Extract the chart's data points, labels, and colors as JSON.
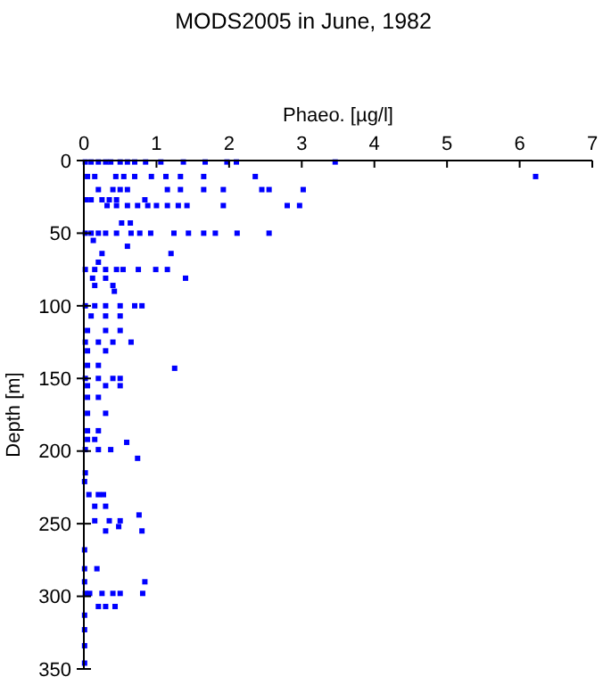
{
  "chart_data": {
    "type": "scatter",
    "title": "MODS2005 in June, 1982",
    "xlabel": "Phaeo. [µg/l]",
    "ylabel": "Depth [m]",
    "xlim": [
      0,
      7
    ],
    "xticks": [
      0,
      1,
      2,
      3,
      4,
      5,
      6,
      7
    ],
    "ylim": [
      350,
      0
    ],
    "yticks": [
      0,
      50,
      100,
      150,
      200,
      250,
      300,
      350
    ],
    "grid": false,
    "marker": "square",
    "series": [
      {
        "color": "#0000ff",
        "x": [
          0.02,
          0.1,
          0.2,
          0.3,
          0.37,
          0.5,
          0.6,
          0.7,
          0.85,
          1.06,
          1.37,
          1.67,
          1.97,
          2.1,
          3.46,
          0.05,
          0.15,
          0.44,
          0.55,
          0.7,
          0.93,
          1.13,
          1.33,
          1.65,
          2.36,
          6.22,
          0.2,
          0.4,
          0.5,
          0.6,
          1.15,
          1.33,
          1.65,
          1.92,
          2.45,
          2.55,
          3.02,
          0.03,
          0.1,
          0.25,
          0.35,
          0.45,
          0.84,
          0.32,
          0.45,
          0.6,
          0.74,
          0.88,
          1.0,
          1.15,
          1.3,
          1.42,
          1.92,
          2.8,
          2.97,
          0.52,
          0.64,
          0.02,
          0.1,
          0.2,
          0.3,
          0.45,
          0.65,
          0.77,
          0.92,
          1.24,
          1.44,
          1.65,
          1.81,
          2.11,
          2.55,
          0.13,
          0.6,
          0.25,
          1.2,
          0.2,
          0.02,
          0.15,
          0.3,
          0.45,
          0.54,
          0.75,
          0.99,
          1.15,
          0.12,
          0.3,
          1.4,
          0.15,
          0.4,
          0.42,
          0.02,
          0.15,
          0.3,
          0.5,
          0.7,
          0.8,
          0.1,
          0.3,
          0.5,
          0.05,
          0.3,
          0.5,
          0.02,
          0.2,
          0.4,
          0.65,
          0.05,
          0.3,
          0.05,
          0.2,
          1.25,
          0.02,
          0.2,
          0.4,
          0.5,
          0.05,
          0.3,
          0.5,
          0.05,
          0.2,
          0.05,
          0.3,
          0.05,
          0.2,
          0.05,
          0.15,
          0.59,
          0.02,
          0.2,
          0.37,
          0.74,
          0.02,
          0.01,
          0.07,
          0.2,
          0.27,
          0.15,
          0.3,
          0.76,
          0.15,
          0.35,
          0.5,
          0.48,
          0.3,
          0.8,
          0.01,
          0.01,
          0.18,
          0.01,
          0.84,
          0.02,
          0.08,
          0.25,
          0.4,
          0.5,
          0.81,
          0.2,
          0.3,
          0.43,
          0.01,
          0.01,
          0.01,
          0.01
        ],
        "values": [
          1,
          1,
          1,
          1,
          1,
          1,
          1,
          1,
          1,
          1,
          1,
          1,
          1,
          1,
          1,
          11,
          11,
          11,
          11,
          11,
          11,
          11,
          11,
          11,
          11,
          11,
          20,
          20,
          20,
          20,
          20,
          20,
          20,
          20,
          20,
          20,
          20,
          27,
          27,
          27,
          27,
          27,
          27,
          31,
          31,
          31,
          31,
          31,
          31,
          31,
          31,
          31,
          31,
          31,
          31,
          43,
          43,
          50,
          50,
          50,
          50,
          50,
          50,
          50,
          50,
          50,
          50,
          50,
          50,
          50,
          50,
          55,
          59,
          64,
          64,
          70,
          75,
          75,
          75,
          75,
          75,
          75,
          75,
          75,
          81,
          81,
          81,
          86,
          86,
          90,
          100,
          100,
          100,
          100,
          100,
          100,
          107,
          107,
          107,
          117,
          117,
          117,
          125,
          125,
          125,
          125,
          131,
          131,
          141,
          141,
          143,
          150,
          150,
          150,
          150,
          155,
          155,
          155,
          163,
          163,
          174,
          174,
          186,
          186,
          192,
          192,
          194,
          199,
          199,
          199,
          205,
          215,
          221,
          230,
          230,
          230,
          238,
          238,
          244,
          248,
          248,
          248,
          252,
          255,
          255,
          268,
          281,
          281,
          290,
          290,
          298,
          298,
          298,
          298,
          298,
          298,
          307,
          307,
          307,
          313,
          323,
          334,
          346
        ]
      }
    ]
  }
}
